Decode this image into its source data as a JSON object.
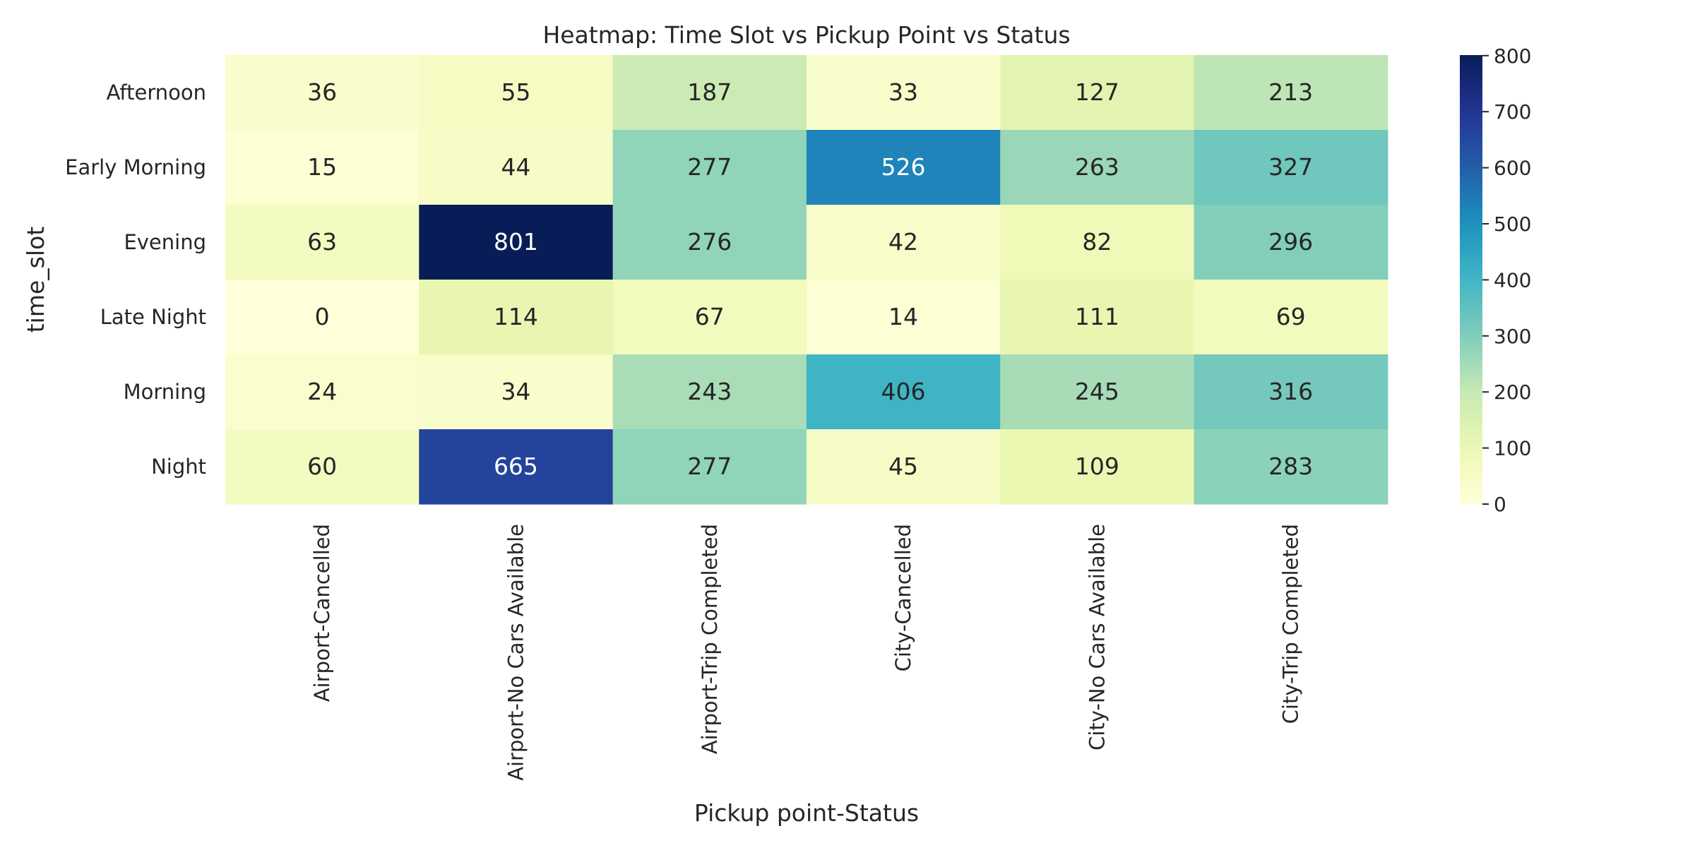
{
  "chart_data": {
    "type": "heatmap",
    "title": "Heatmap: Time Slot vs Pickup Point vs Status",
    "xlabel": "Pickup point-Status",
    "ylabel": "time_slot",
    "rows": [
      "Afternoon",
      "Early Morning",
      "Evening",
      "Late Night",
      "Morning",
      "Night"
    ],
    "columns": [
      "Airport-Cancelled",
      "Airport-No Cars Available",
      "Airport-Trip Completed",
      "City-Cancelled",
      "City-No Cars Available",
      "City-Trip Completed"
    ],
    "values": [
      [
        36,
        55,
        187,
        33,
        127,
        213
      ],
      [
        15,
        44,
        277,
        526,
        263,
        327
      ],
      [
        63,
        801,
        276,
        42,
        82,
        296
      ],
      [
        0,
        114,
        67,
        14,
        111,
        69
      ],
      [
        24,
        34,
        243,
        406,
        245,
        316
      ],
      [
        60,
        665,
        277,
        45,
        109,
        283
      ]
    ],
    "colormap": "YlGnBu",
    "vmin": 0,
    "vmax": 801,
    "colorbar": {
      "ticks": [
        0,
        100,
        200,
        300,
        400,
        500,
        600,
        700,
        800
      ],
      "placement": "right"
    },
    "annotations": true
  }
}
